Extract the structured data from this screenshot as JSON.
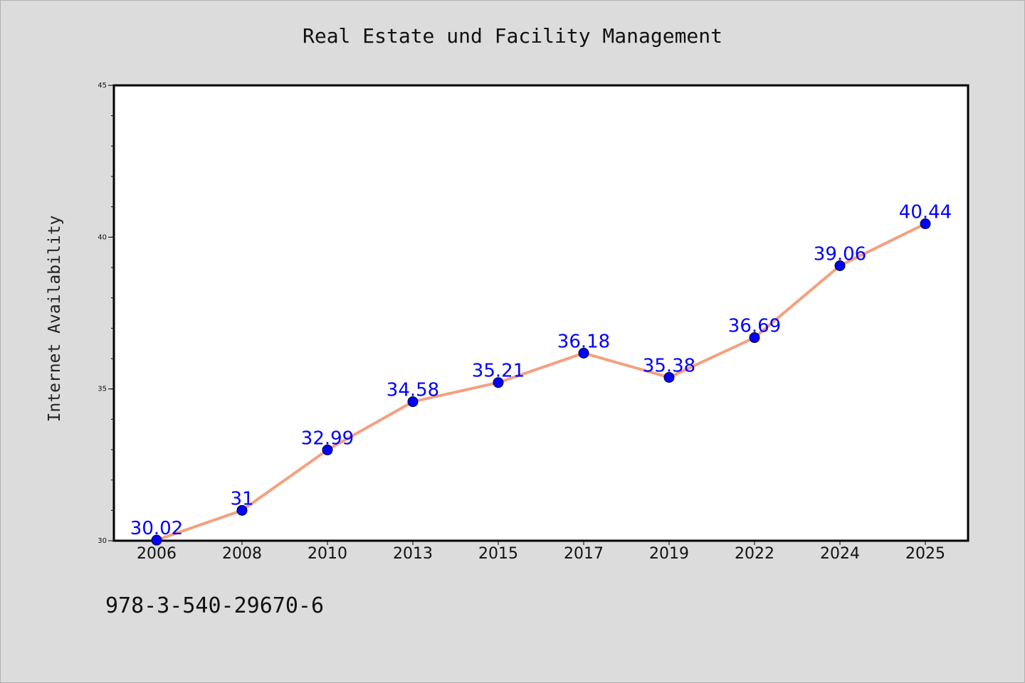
{
  "page": {
    "footer_text": "978-3-540-29670-6"
  },
  "colors": {
    "background": "#dcdcdc",
    "plot_background": "#ffffff",
    "line": "#f4a080",
    "marker": "#0000ff",
    "data_label": "#0000ff"
  },
  "chart_data": {
    "type": "line",
    "title": "Real Estate und Facility Management",
    "xlabel": "",
    "ylabel": "Internet Availability",
    "categories": [
      "2006",
      "2008",
      "2010",
      "2013",
      "2015",
      "2017",
      "2019",
      "2022",
      "2024",
      "2025"
    ],
    "series": [
      {
        "values": [
          30.02,
          31,
          32.99,
          34.58,
          35.21,
          36.18,
          35.38,
          36.69,
          39.06,
          40.44
        ],
        "labels": [
          "30.02",
          "31",
          "32.99",
          "34.58",
          "35.21",
          "36.18",
          "35.38",
          "36.69",
          "39.06",
          "40.44"
        ]
      }
    ],
    "ylim": [
      30,
      45
    ],
    "yticks": [
      30,
      35,
      40,
      45
    ],
    "y_minor_step": 1,
    "grid": false,
    "legend": "none",
    "markers": true
  }
}
